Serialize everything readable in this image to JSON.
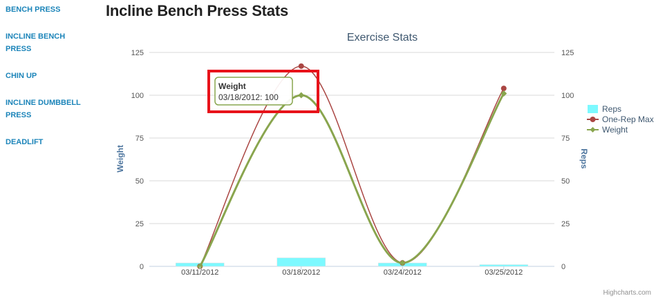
{
  "sidebar": {
    "items": [
      {
        "label": "BENCH PRESS"
      },
      {
        "label": "INCLINE BENCH PRESS"
      },
      {
        "label": "CHIN UP"
      },
      {
        "label": "INCLINE DUMBBELL PRESS"
      },
      {
        "label": "DEADLIFT"
      }
    ]
  },
  "page": {
    "title": "Incline Bench Press Stats"
  },
  "credits": "Highcharts.com",
  "tooltip": {
    "series": "Weight",
    "text": "03/18/2012: 100",
    "highlight_color": "#e8121a"
  },
  "chart_data": {
    "type": "line",
    "title": "Exercise Stats",
    "categories": [
      "03/11/2012",
      "03/18/2012",
      "03/24/2012",
      "03/25/2012"
    ],
    "y_left": {
      "label": "Weight",
      "range": [
        0,
        125
      ],
      "ticks": [
        0,
        25,
        50,
        75,
        100,
        125
      ]
    },
    "y_right": {
      "label": "Reps",
      "range": [
        0,
        125
      ],
      "ticks": [
        0,
        25,
        50,
        75,
        100,
        125
      ]
    },
    "grid": true,
    "legend": "right",
    "series": [
      {
        "name": "Reps",
        "kind": "column",
        "color": "#7df9ff",
        "values": [
          2,
          5,
          2,
          1
        ]
      },
      {
        "name": "One-Rep Max",
        "kind": "spline",
        "color": "#aa4643",
        "values": [
          0,
          117,
          2,
          104
        ]
      },
      {
        "name": "Weight",
        "kind": "spline",
        "color": "#89a54e",
        "values": [
          0,
          100,
          2,
          101
        ]
      }
    ]
  }
}
